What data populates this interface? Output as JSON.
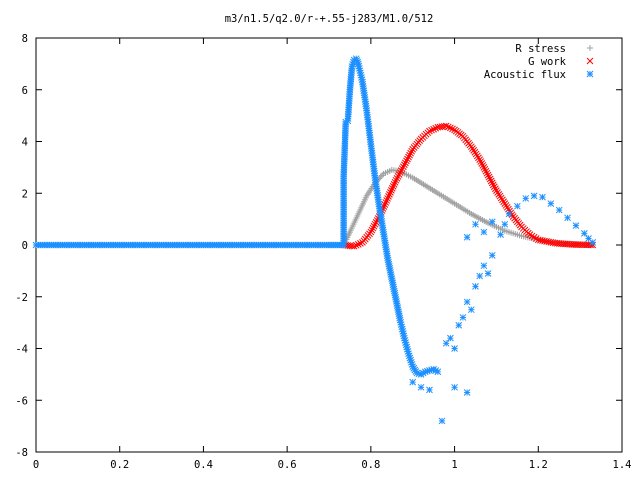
{
  "chart_data": {
    "type": "scatter",
    "title": "m3/n1.5/q2.0/r-+.55-j283/M1.0/512",
    "xlabel": "",
    "ylabel": "",
    "xlim": [
      0,
      1.4
    ],
    "ylim": [
      -8,
      8
    ],
    "x_ticks": [
      "0",
      "0.2",
      "0.4",
      "0.6",
      "0.8",
      "1",
      "1.2",
      "1.4"
    ],
    "y_ticks": [
      "-8",
      "-6",
      "-4",
      "-2",
      "0",
      "2",
      "4",
      "6",
      "8"
    ],
    "grid": false,
    "legend_position": "top-right",
    "series": [
      {
        "name": "R stress",
        "marker": "plus",
        "color": "#a0a0a0",
        "points": [
          [
            0.0,
            0.0
          ],
          [
            0.1,
            0.0
          ],
          [
            0.2,
            0.0
          ],
          [
            0.3,
            0.0
          ],
          [
            0.4,
            0.0
          ],
          [
            0.5,
            0.0
          ],
          [
            0.6,
            0.0
          ],
          [
            0.7,
            0.0
          ],
          [
            0.735,
            0.0
          ],
          [
            0.75,
            0.5
          ],
          [
            0.77,
            1.2
          ],
          [
            0.79,
            1.9
          ],
          [
            0.81,
            2.4
          ],
          [
            0.83,
            2.75
          ],
          [
            0.85,
            2.9
          ],
          [
            0.87,
            2.85
          ],
          [
            0.9,
            2.6
          ],
          [
            0.93,
            2.3
          ],
          [
            0.96,
            2.0
          ],
          [
            1.0,
            1.6
          ],
          [
            1.04,
            1.2
          ],
          [
            1.08,
            0.85
          ],
          [
            1.12,
            0.55
          ],
          [
            1.16,
            0.35
          ],
          [
            1.2,
            0.2
          ],
          [
            1.25,
            0.08
          ],
          [
            1.3,
            0.02
          ],
          [
            1.33,
            0.0
          ]
        ]
      },
      {
        "name": "G work",
        "marker": "cross",
        "color": "#ff0000",
        "points": [
          [
            0.735,
            0.0
          ],
          [
            0.76,
            -0.05
          ],
          [
            0.78,
            0.1
          ],
          [
            0.8,
            0.5
          ],
          [
            0.82,
            1.1
          ],
          [
            0.84,
            1.8
          ],
          [
            0.86,
            2.5
          ],
          [
            0.88,
            3.1
          ],
          [
            0.9,
            3.7
          ],
          [
            0.92,
            4.1
          ],
          [
            0.94,
            4.4
          ],
          [
            0.96,
            4.55
          ],
          [
            0.98,
            4.6
          ],
          [
            1.0,
            4.45
          ],
          [
            1.02,
            4.2
          ],
          [
            1.04,
            3.8
          ],
          [
            1.06,
            3.3
          ],
          [
            1.08,
            2.7
          ],
          [
            1.1,
            2.1
          ],
          [
            1.12,
            1.6
          ],
          [
            1.14,
            1.1
          ],
          [
            1.16,
            0.7
          ],
          [
            1.18,
            0.4
          ],
          [
            1.2,
            0.2
          ],
          [
            1.24,
            0.07
          ],
          [
            1.28,
            0.02
          ],
          [
            1.33,
            0.0
          ]
        ]
      },
      {
        "name": "Acoustic flux",
        "marker": "star",
        "color": "#1e90ff",
        "points": [
          [
            0.0,
            0.0
          ],
          [
            0.1,
            0.0
          ],
          [
            0.2,
            0.0
          ],
          [
            0.3,
            0.0
          ],
          [
            0.4,
            0.0
          ],
          [
            0.5,
            0.0
          ],
          [
            0.6,
            0.0
          ],
          [
            0.7,
            0.0
          ],
          [
            0.735,
            0.0
          ],
          [
            0.735,
            2.65
          ],
          [
            0.74,
            4.75
          ],
          [
            0.745,
            4.8
          ],
          [
            0.75,
            6.0
          ],
          [
            0.755,
            6.9
          ],
          [
            0.76,
            7.15
          ],
          [
            0.765,
            7.2
          ],
          [
            0.77,
            7.0
          ],
          [
            0.78,
            6.3
          ],
          [
            0.79,
            5.2
          ],
          [
            0.8,
            3.9
          ],
          [
            0.81,
            2.6
          ],
          [
            0.82,
            1.5
          ],
          [
            0.83,
            0.5
          ],
          [
            0.84,
            -0.5
          ],
          [
            0.85,
            -1.3
          ],
          [
            0.86,
            -2.1
          ],
          [
            0.87,
            -2.9
          ],
          [
            0.88,
            -3.6
          ],
          [
            0.89,
            -4.2
          ],
          [
            0.9,
            -4.7
          ],
          [
            0.91,
            -4.95
          ],
          [
            0.92,
            -5.0
          ],
          [
            0.93,
            -4.9
          ],
          [
            0.94,
            -4.85
          ],
          [
            0.95,
            -4.8
          ],
          [
            0.96,
            -4.9
          ],
          [
            0.9,
            -5.3
          ],
          [
            0.92,
            -5.5
          ],
          [
            0.94,
            -5.6
          ],
          [
            0.97,
            -6.8
          ],
          [
            1.0,
            -5.5
          ],
          [
            1.03,
            -5.7
          ],
          [
            0.98,
            -3.8
          ],
          [
            0.99,
            -3.6
          ],
          [
            1.0,
            -4.0
          ],
          [
            1.01,
            -3.1
          ],
          [
            1.02,
            -2.8
          ],
          [
            1.03,
            -2.2
          ],
          [
            1.04,
            -2.5
          ],
          [
            1.05,
            -1.6
          ],
          [
            1.06,
            -1.2
          ],
          [
            1.07,
            -0.8
          ],
          [
            1.08,
            -1.1
          ],
          [
            1.09,
            -0.4
          ],
          [
            1.03,
            0.3
          ],
          [
            1.05,
            0.8
          ],
          [
            1.07,
            0.5
          ],
          [
            1.09,
            0.9
          ],
          [
            1.11,
            0.4
          ],
          [
            1.12,
            0.8
          ],
          [
            1.13,
            1.2
          ],
          [
            1.15,
            1.5
          ],
          [
            1.17,
            1.8
          ],
          [
            1.19,
            1.9
          ],
          [
            1.21,
            1.85
          ],
          [
            1.23,
            1.6
          ],
          [
            1.25,
            1.35
          ],
          [
            1.27,
            1.05
          ],
          [
            1.29,
            0.75
          ],
          [
            1.31,
            0.45
          ],
          [
            1.32,
            0.25
          ],
          [
            1.33,
            0.1
          ]
        ]
      }
    ]
  }
}
